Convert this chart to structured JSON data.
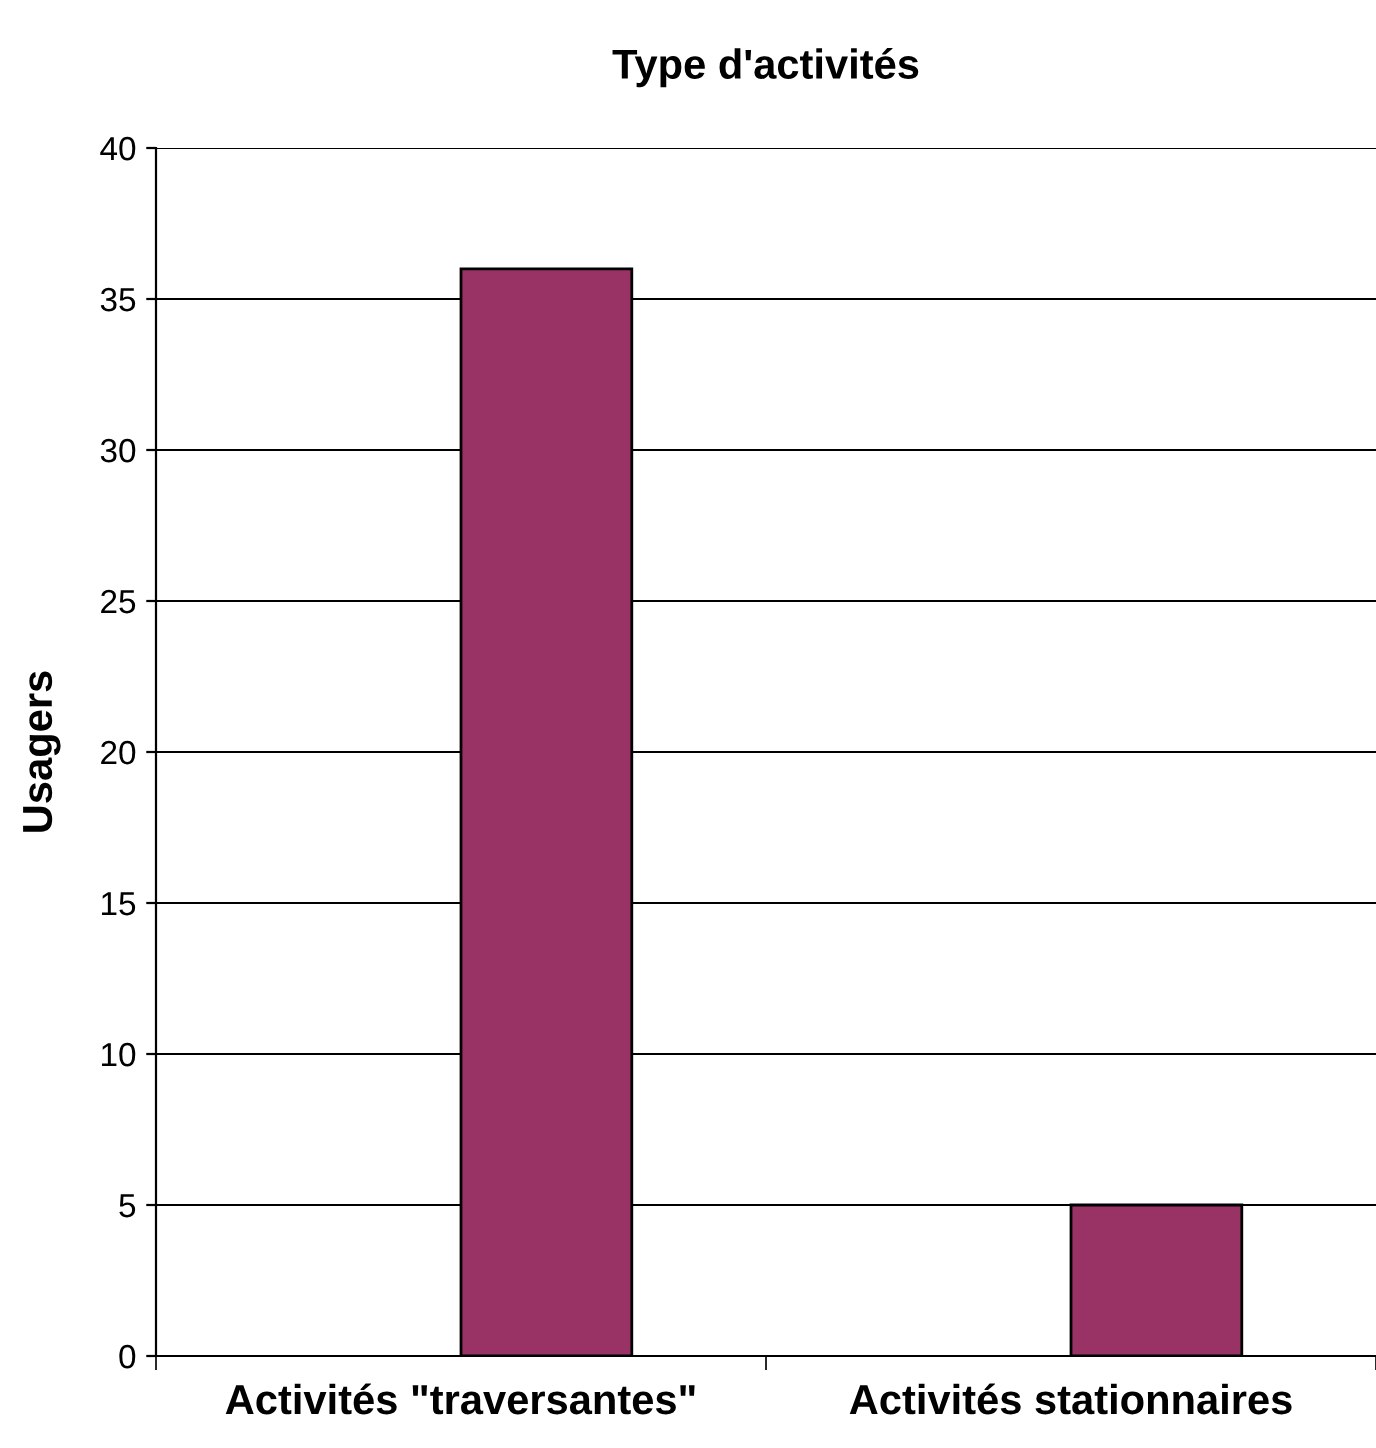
{
  "chart_data": {
    "type": "bar",
    "title": "Type d'activités",
    "ylabel": "Usagers",
    "categories": [
      "Activités \"traversantes\"",
      "Activités stationnaires"
    ],
    "values": [
      36,
      5
    ],
    "color": "#993366",
    "ylim": [
      0,
      40
    ],
    "yticks": [
      0,
      5,
      10,
      15,
      20,
      25,
      30,
      35,
      40
    ],
    "grid": "y",
    "legend": false
  }
}
